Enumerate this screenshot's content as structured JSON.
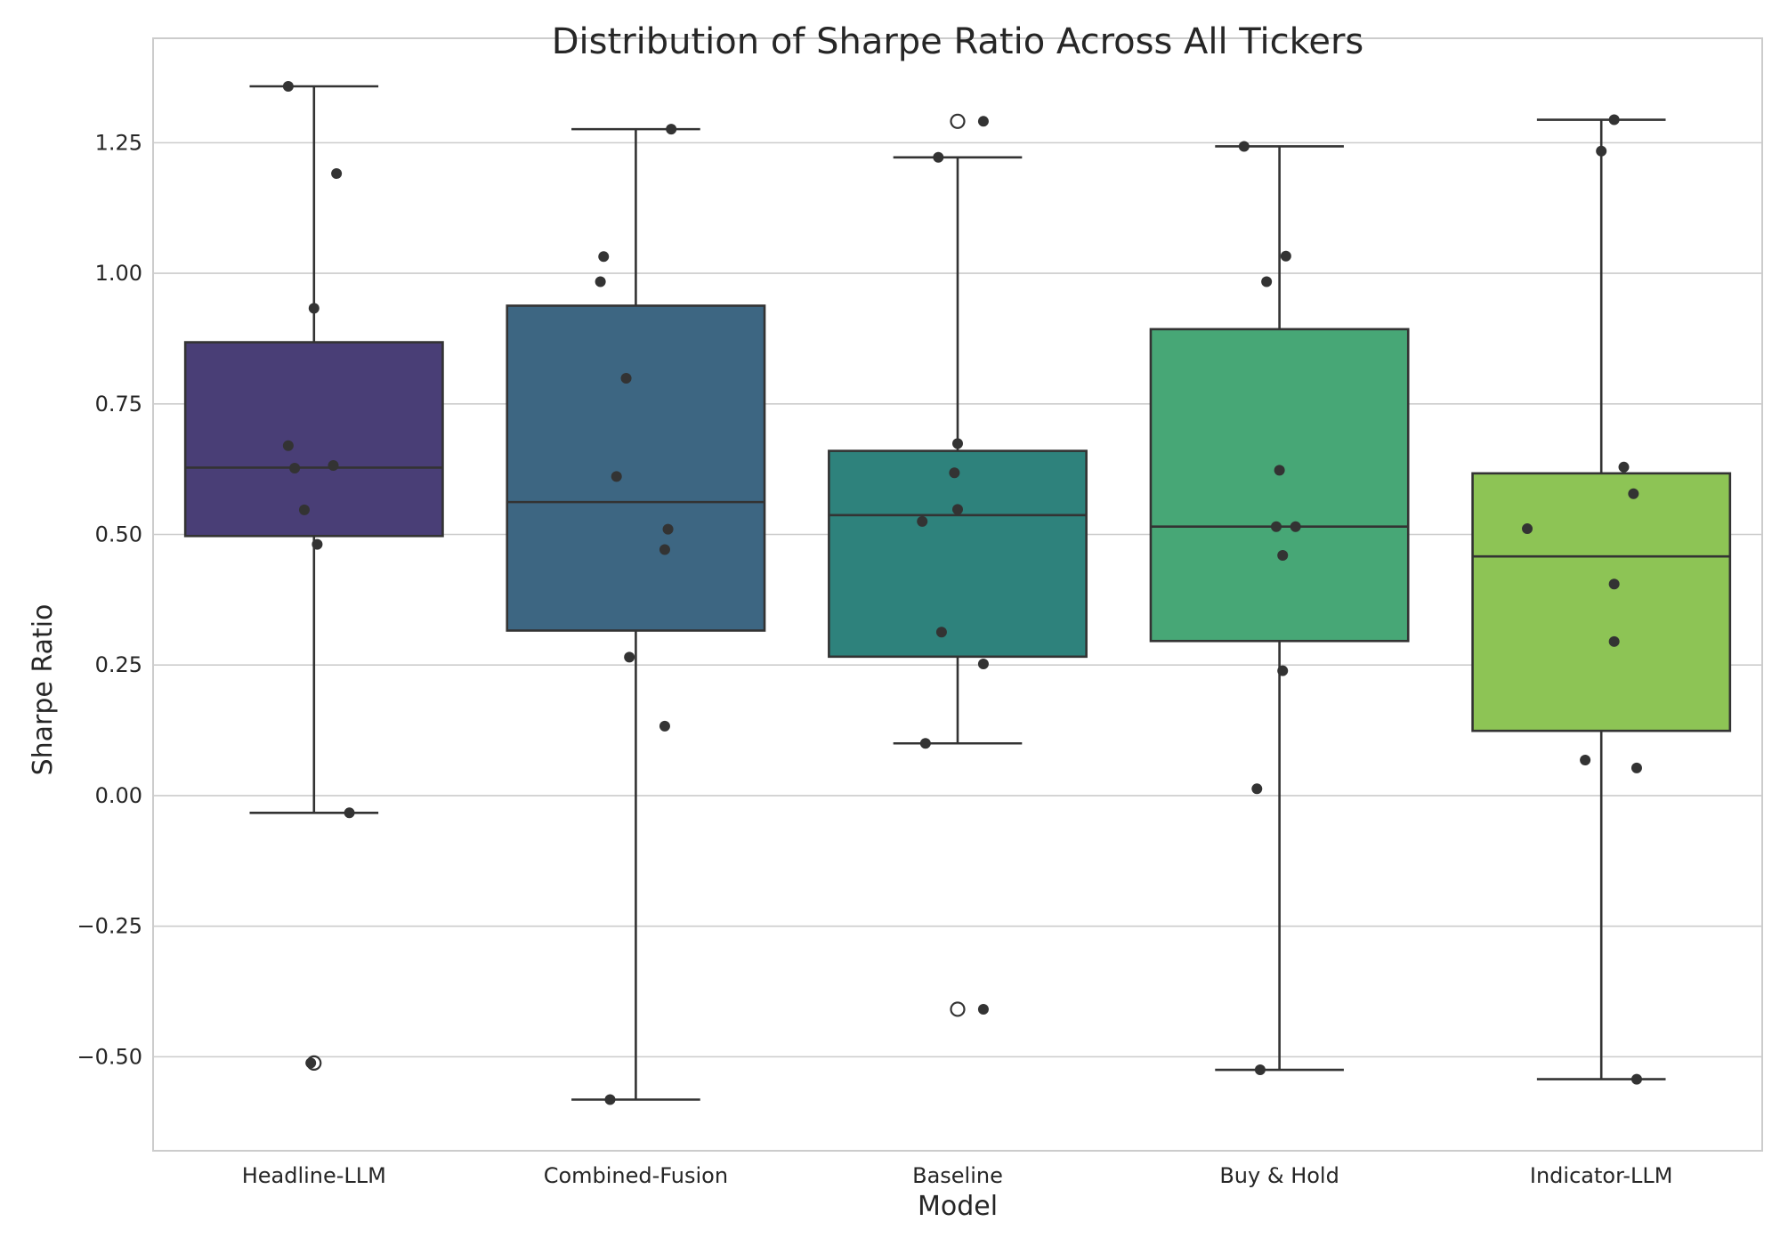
{
  "chart_data": {
    "type": "box",
    "title": "Distribution of Sharpe Ratio Across All Tickers",
    "xlabel": "Model",
    "ylabel": "Sharpe Ratio",
    "ylim": [
      -0.68,
      1.45
    ],
    "yticks": [
      -0.5,
      -0.25,
      0.0,
      0.25,
      0.5,
      0.75,
      1.0,
      1.25
    ],
    "ytick_labels": [
      "−0.50",
      "−0.25",
      "0.00",
      "0.25",
      "0.50",
      "0.75",
      "1.00",
      "1.25"
    ],
    "grid": true,
    "legend": "none",
    "categories": [
      "Headline-LLM",
      "Combined-Fusion",
      "Baseline",
      "Buy & Hold",
      "Indicator-LLM"
    ],
    "colors": [
      "#493e76",
      "#3d6682",
      "#2e827c",
      "#47a776",
      "#8dc455"
    ],
    "boxes": [
      {
        "name": "Headline-LLM",
        "q1": 0.497,
        "median": 0.628,
        "q3": 0.868,
        "whisker_low": -0.033,
        "whisker_high": 1.358,
        "outliers": [
          -0.512
        ]
      },
      {
        "name": "Combined-Fusion",
        "q1": 0.316,
        "median": 0.562,
        "q3": 0.938,
        "whisker_low": -0.582,
        "whisker_high": 1.276,
        "outliers": []
      },
      {
        "name": "Baseline",
        "q1": 0.266,
        "median": 0.537,
        "q3": 0.66,
        "whisker_low": 0.1,
        "whisker_high": 1.222,
        "outliers": [
          1.291,
          -0.409
        ]
      },
      {
        "name": "Buy & Hold",
        "q1": 0.296,
        "median": 0.515,
        "q3": 0.893,
        "whisker_low": -0.525,
        "whisker_high": 1.243,
        "outliers": []
      },
      {
        "name": "Indicator-LLM",
        "q1": 0.124,
        "median": 0.458,
        "q3": 0.617,
        "whisker_low": -0.543,
        "whisker_high": 1.294,
        "outliers": []
      }
    ],
    "points": [
      {
        "category": "Headline-LLM",
        "offsets": [
          -0.08,
          0.07,
          0.0,
          -0.08,
          -0.06,
          0.06,
          -0.03,
          0.01,
          0.11,
          -0.01
        ],
        "values": [
          1.358,
          1.191,
          0.933,
          0.67,
          0.627,
          0.632,
          0.547,
          0.481,
          -0.033,
          -0.512
        ]
      },
      {
        "category": "Combined-Fusion",
        "offsets": [
          0.11,
          -0.1,
          -0.11,
          -0.03,
          -0.06,
          0.1,
          0.09,
          -0.02,
          0.09,
          -0.08
        ],
        "values": [
          1.276,
          1.032,
          0.984,
          0.799,
          0.611,
          0.51,
          0.471,
          0.265,
          0.133,
          -0.582
        ]
      },
      {
        "category": "Baseline",
        "offsets": [
          0.08,
          -0.06,
          0.0,
          -0.01,
          0.0,
          -0.11,
          -0.05,
          0.08,
          -0.1,
          0.08
        ],
        "values": [
          1.291,
          1.222,
          0.674,
          0.618,
          0.548,
          0.525,
          0.313,
          0.252,
          0.1,
          -0.409
        ]
      },
      {
        "category": "Buy & Hold",
        "offsets": [
          -0.11,
          0.02,
          -0.04,
          0.0,
          -0.01,
          0.05,
          0.01,
          0.01,
          -0.07,
          -0.06
        ],
        "values": [
          1.243,
          1.033,
          0.984,
          0.623,
          0.515,
          0.515,
          0.46,
          0.239,
          0.013,
          -0.525
        ]
      },
      {
        "category": "Indicator-LLM",
        "offsets": [
          0.04,
          -0.0,
          0.07,
          0.1,
          -0.23,
          0.04,
          0.04,
          -0.05,
          0.11,
          0.11
        ],
        "values": [
          1.294,
          1.234,
          0.629,
          0.578,
          0.511,
          0.405,
          0.295,
          0.068,
          0.053,
          -0.543
        ]
      }
    ]
  }
}
